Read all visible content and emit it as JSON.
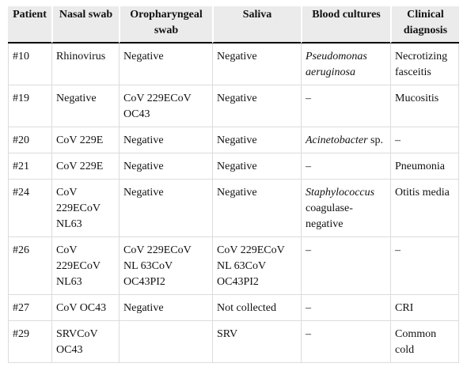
{
  "table": {
    "header": [
      "Patient",
      "Nasal swab",
      "Oropharyngeal swab",
      "Saliva",
      "Blood cultures",
      "Clinical diagnosis"
    ],
    "rows": [
      [
        "#10",
        "Rhinovirus",
        "Negative",
        "Negative",
        {
          "italic": "Pseudomonas aeruginosa"
        },
        "Necrotizing fasceitis"
      ],
      [
        "#19",
        "Negative",
        "CoV 229ECoV OC43",
        "Negative",
        "–",
        "Mucositis"
      ],
      [
        "#20",
        "CoV 229E",
        "Negative",
        "Negative",
        {
          "italic": "Acinetobacter",
          "text": "sp."
        },
        "–"
      ],
      [
        "#21",
        "CoV 229E",
        "Negative",
        "Negative",
        "–",
        "Pneumonia"
      ],
      [
        "#24",
        "CoV 229ECoV NL63",
        "Negative",
        "Negative",
        {
          "italic": "Staphylococcus",
          "text": "coagulase-negative"
        },
        "Otitis media"
      ],
      [
        "#26",
        "CoV 229ECoV NL63",
        "CoV 229ECoV NL 63CoV OC43PI2",
        "CoV 229ECoV NL 63CoV OC43PI2",
        "–",
        "–"
      ],
      [
        "#27",
        "CoV OC43",
        "Negative",
        "Not collected",
        "–",
        "CRI"
      ],
      [
        "#29",
        "SRVCoV OC43",
        "",
        "SRV",
        "–",
        "Common cold"
      ]
    ]
  }
}
